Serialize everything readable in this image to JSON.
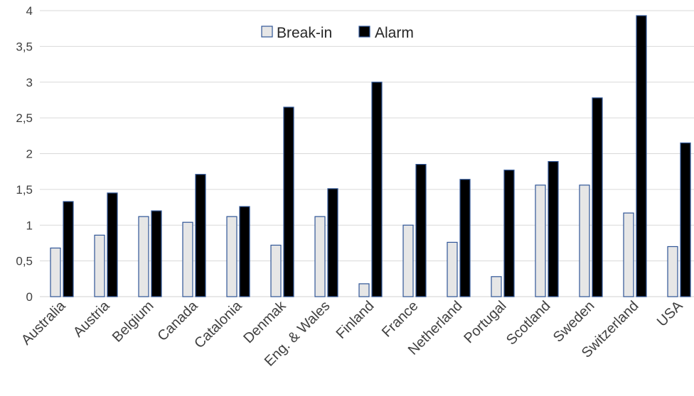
{
  "chart_data": {
    "type": "bar",
    "categories": [
      "Australia",
      "Austria",
      "Belgium",
      "Canada",
      "Catalonia",
      "Denmak",
      "Eng. & Wales",
      "Finland",
      "France",
      "Netherland",
      "Portugal",
      "Scotland",
      "Sweden",
      "Switzerland",
      "USA"
    ],
    "series": [
      {
        "name": "Break-in",
        "color": "#e6e6e6",
        "edge": "#2f5597",
        "values": [
          0.68,
          0.86,
          1.12,
          1.04,
          1.12,
          0.72,
          1.12,
          0.18,
          1.0,
          0.76,
          0.28,
          1.56,
          1.56,
          1.17,
          0.7
        ]
      },
      {
        "name": "Alarm",
        "color": "#000000",
        "edge": "#2f5597",
        "values": [
          1.33,
          1.45,
          1.2,
          1.71,
          1.26,
          2.65,
          1.51,
          3.0,
          1.85,
          1.64,
          1.77,
          1.89,
          2.78,
          3.93,
          2.15
        ]
      }
    ],
    "y_ticks": [
      "0",
      "0,5",
      "1",
      "1,5",
      "2",
      "2,5",
      "3",
      "3,5",
      "4"
    ],
    "ylim": [
      0,
      4
    ],
    "grid": true,
    "legend": "top-center",
    "title": "",
    "xlabel": "",
    "ylabel": ""
  }
}
